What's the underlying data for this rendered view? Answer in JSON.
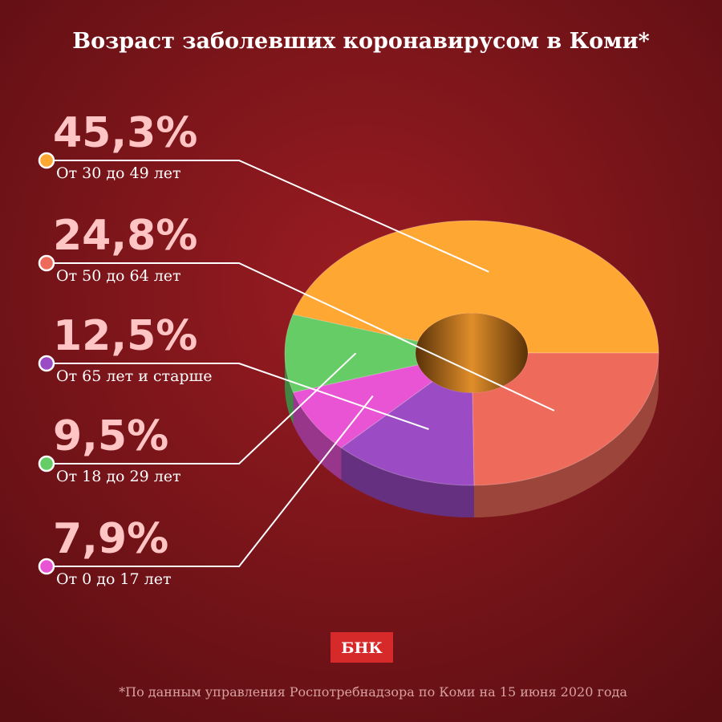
{
  "chart_data": {
    "type": "pie",
    "title": "Возраст заболевших коронавирусом в Коми*",
    "categories": [
      "От 30 до 49 лет",
      "От 50 до 64 лет",
      "От 65 лет и старше",
      "От 18 до 29 лет",
      "От 0 до 17 лет"
    ],
    "values": [
      45.3,
      24.8,
      12.5,
      9.5,
      7.9
    ],
    "value_labels": [
      "45,3%",
      "24,8%",
      "12,5%",
      "9,5%",
      "7,9%"
    ],
    "colors": [
      "#ffa733",
      "#ee6a5b",
      "#9b4bc4",
      "#66cc66",
      "#e854d4"
    ],
    "logo": "БНК",
    "note": "*По данным управления Роспотребнадзора по Коми на 15 июня 2020 года"
  }
}
